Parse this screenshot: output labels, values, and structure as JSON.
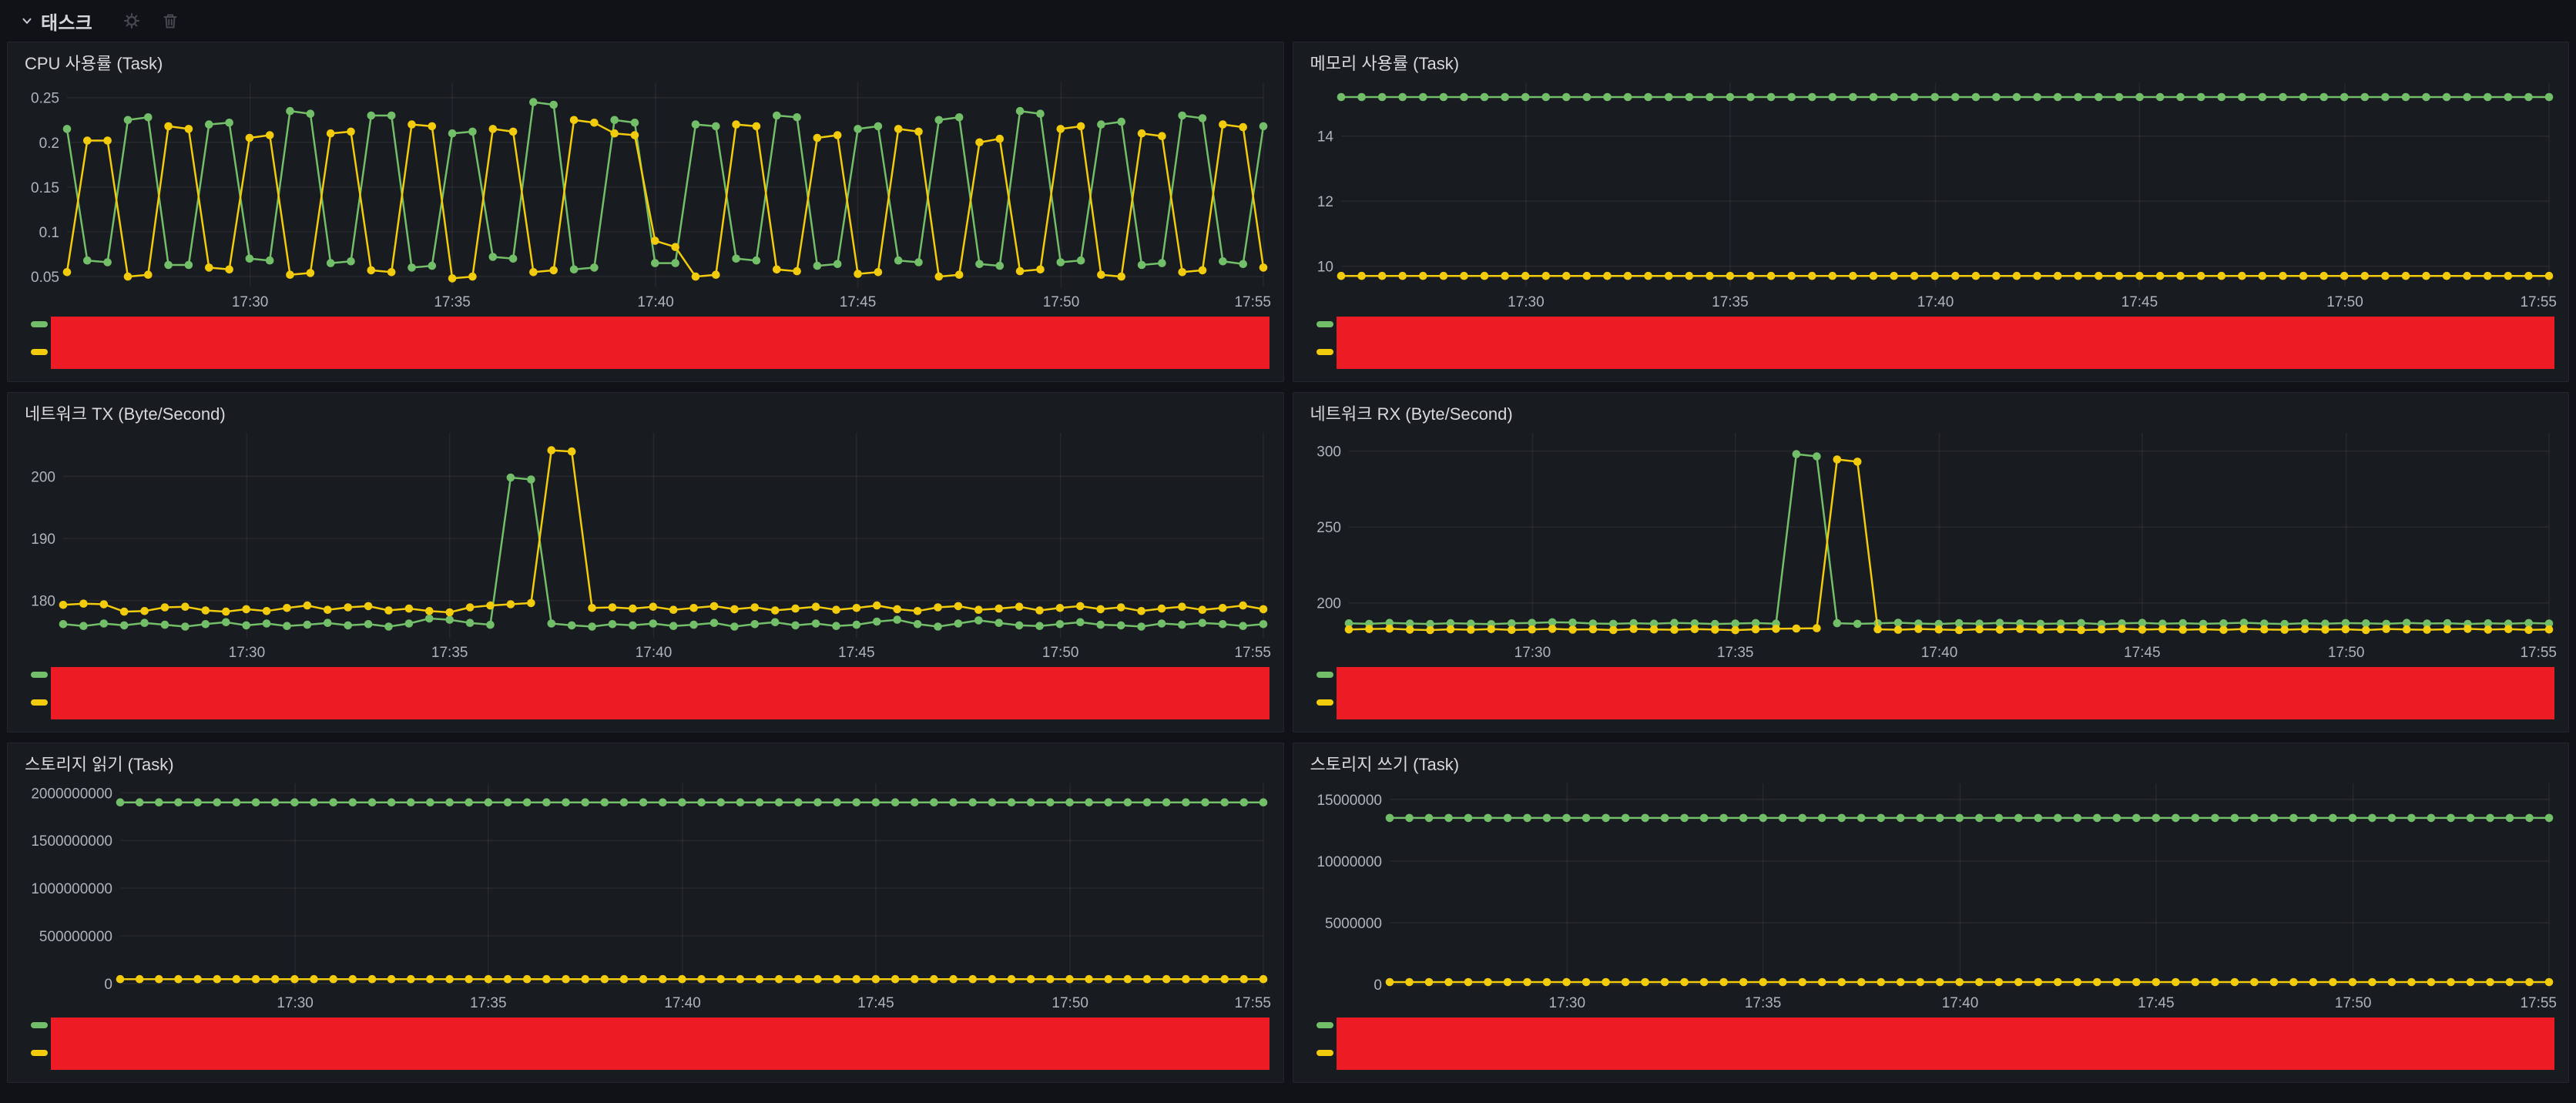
{
  "header": {
    "title": "태스크",
    "collapse_icon": "chevron-down",
    "actions": [
      {
        "name": "row-settings",
        "icon": "gear"
      },
      {
        "name": "row-delete",
        "icon": "trash"
      }
    ]
  },
  "colors": {
    "green": "#73bf69",
    "yellow": "#f2cc0c",
    "redacted": "#ed1c24",
    "page_bg": "#111217",
    "panel_bg": "#181b20",
    "panel_border": "#24262d",
    "title_text": "#d8d9da",
    "tick_text": "#b0b2bc",
    "grid": "rgba(204,204,220,0.08)"
  },
  "time_axis": {
    "labels": [
      "17:30",
      "17:35",
      "17:40",
      "17:45",
      "17:50",
      "17:55"
    ],
    "fractions": [
      0.153,
      0.322,
      0.492,
      0.661,
      0.831,
      1.0
    ]
  },
  "legend": {
    "labels_hidden_by_red_overlay": true,
    "series_colors": [
      "green",
      "yellow"
    ]
  },
  "chart_data": [
    {
      "id": "cpu-usage",
      "type": "line",
      "title": "CPU 사용률 (Task)",
      "points": 60,
      "yticks": [
        0.05,
        0.1,
        0.15,
        0.2,
        0.25
      ],
      "ytick_labels": [
        "0.05",
        "0.1",
        "0.15",
        "0.2",
        "0.25"
      ],
      "ylim": [
        0.038,
        0.267
      ],
      "series": [
        {
          "name": "series-green",
          "color": "green",
          "values": [
            0.215,
            0.068,
            0.066,
            0.225,
            0.228,
            0.063,
            0.063,
            0.22,
            0.222,
            0.07,
            0.068,
            0.235,
            0.232,
            0.065,
            0.067,
            0.23,
            0.23,
            0.06,
            0.062,
            0.21,
            0.212,
            0.072,
            0.07,
            0.245,
            0.242,
            0.058,
            0.06,
            0.225,
            0.222,
            0.065,
            0.065,
            0.22,
            0.218,
            0.07,
            0.068,
            0.23,
            0.228,
            0.062,
            0.064,
            0.215,
            0.218,
            0.068,
            0.066,
            0.225,
            0.228,
            0.064,
            0.062,
            0.235,
            0.232,
            0.066,
            0.068,
            0.22,
            0.223,
            0.063,
            0.065,
            0.23,
            0.227,
            0.067,
            0.064,
            0.218
          ]
        },
        {
          "name": "series-yellow",
          "color": "yellow",
          "values": [
            0.055,
            0.202,
            0.202,
            0.05,
            0.052,
            0.218,
            0.215,
            0.06,
            0.058,
            0.205,
            0.208,
            0.052,
            0.054,
            0.21,
            0.212,
            0.057,
            0.055,
            0.22,
            0.218,
            0.048,
            0.05,
            0.215,
            0.212,
            0.055,
            0.057,
            0.225,
            0.222,
            0.21,
            0.208,
            0.09,
            0.083,
            0.05,
            0.052,
            0.22,
            0.218,
            0.058,
            0.056,
            0.205,
            0.208,
            0.053,
            0.055,
            0.215,
            0.212,
            0.05,
            0.052,
            0.2,
            0.204,
            0.056,
            0.058,
            0.215,
            0.218,
            0.052,
            0.05,
            0.21,
            0.207,
            0.055,
            0.057,
            0.22,
            0.217,
            0.06
          ]
        }
      ]
    },
    {
      "id": "memory-usage",
      "type": "line",
      "title": "메모리 사용률 (Task)",
      "points": 60,
      "yticks": [
        10,
        12,
        14
      ],
      "ytick_labels": [
        "10",
        "12",
        "14"
      ],
      "ylim": [
        9.35,
        15.65
      ],
      "series": [
        {
          "name": "series-green",
          "color": "green",
          "const": 15.2
        },
        {
          "name": "series-yellow",
          "color": "yellow",
          "const": 9.7
        }
      ]
    },
    {
      "id": "network-tx",
      "type": "line",
      "title": "네트워크 TX (Byte/Second)",
      "points": 60,
      "yticks": [
        180,
        190,
        200
      ],
      "ytick_labels": [
        "180",
        "190",
        "200"
      ],
      "ylim": [
        174,
        207
      ],
      "series": [
        {
          "name": "series-green",
          "color": "green",
          "values": [
            176.2,
            175.9,
            176.3,
            176.0,
            176.4,
            176.1,
            175.8,
            176.2,
            176.5,
            176.0,
            176.3,
            175.9,
            176.1,
            176.4,
            176.0,
            176.2,
            175.8,
            176.3,
            177.1,
            176.9,
            176.4,
            176.1,
            199.8,
            199.5,
            176.3,
            176.0,
            175.8,
            176.2,
            176.0,
            176.3,
            175.9,
            176.1,
            176.4,
            175.8,
            176.2,
            176.5,
            176.0,
            176.3,
            175.9,
            176.1,
            176.6,
            176.9,
            176.2,
            175.8,
            176.3,
            176.8,
            176.4,
            176.0,
            175.9,
            176.2,
            176.5,
            176.1,
            176.0,
            175.8,
            176.3,
            176.1,
            176.4,
            176.2,
            175.9,
            176.2
          ]
        },
        {
          "name": "series-yellow",
          "color": "yellow",
          "values": [
            179.3,
            179.5,
            179.4,
            178.2,
            178.3,
            178.9,
            179.0,
            178.4,
            178.2,
            178.6,
            178.3,
            178.8,
            179.2,
            178.5,
            178.9,
            179.1,
            178.4,
            178.7,
            178.3,
            178.1,
            178.9,
            179.2,
            179.4,
            179.6,
            204.2,
            204.0,
            178.8,
            178.9,
            178.7,
            179.0,
            178.5,
            178.8,
            179.1,
            178.6,
            178.9,
            178.4,
            178.7,
            179.0,
            178.5,
            178.8,
            179.2,
            178.6,
            178.3,
            178.9,
            179.1,
            178.5,
            178.7,
            179.0,
            178.4,
            178.8,
            179.1,
            178.6,
            178.9,
            178.3,
            178.7,
            179.0,
            178.5,
            178.8,
            179.2,
            178.6
          ]
        }
      ]
    },
    {
      "id": "network-rx",
      "type": "line",
      "title": "네트워크 RX (Byte/Second)",
      "points": 60,
      "yticks": [
        200,
        250,
        300
      ],
      "ytick_labels": [
        "200",
        "250",
        "300"
      ],
      "ylim": [
        177,
        312
      ],
      "series": [
        {
          "name": "series-green",
          "color": "green",
          "values": [
            186.5,
            186.2,
            186.8,
            186.4,
            186.1,
            186.6,
            186.3,
            186.0,
            186.5,
            186.8,
            187.2,
            187.0,
            186.4,
            186.2,
            186.6,
            186.3,
            186.8,
            186.5,
            186.1,
            186.4,
            186.7,
            186.3,
            298.0,
            296.5,
            186.6,
            186.2,
            186.5,
            186.9,
            186.4,
            186.1,
            186.6,
            186.3,
            186.8,
            186.5,
            186.2,
            186.4,
            186.7,
            186.0,
            186.5,
            186.8,
            186.3,
            186.6,
            186.2,
            186.5,
            186.9,
            186.4,
            186.1,
            186.6,
            186.3,
            186.7,
            186.5,
            186.2,
            186.8,
            186.4,
            186.6,
            186.1,
            186.5,
            186.3,
            186.7,
            186.4
          ]
        },
        {
          "name": "series-yellow",
          "color": "yellow",
          "values": [
            182.5,
            182.8,
            183.0,
            182.4,
            182.1,
            182.6,
            182.3,
            182.7,
            182.2,
            182.5,
            182.9,
            182.4,
            182.6,
            182.1,
            182.8,
            182.5,
            182.3,
            182.7,
            182.4,
            182.0,
            182.6,
            182.9,
            183.1,
            183.3,
            294.5,
            293.0,
            182.6,
            182.3,
            182.8,
            182.5,
            182.1,
            182.6,
            182.4,
            182.8,
            182.3,
            182.6,
            182.1,
            182.5,
            182.9,
            182.4,
            182.7,
            182.3,
            182.6,
            182.2,
            182.8,
            182.5,
            182.3,
            182.7,
            182.4,
            182.6,
            182.1,
            182.8,
            182.5,
            182.3,
            182.6,
            182.9,
            182.4,
            182.7,
            182.2,
            182.5
          ]
        }
      ]
    },
    {
      "id": "storage-read",
      "type": "line",
      "title": "스토리지 읽기 (Task)",
      "points": 60,
      "yticks": [
        0,
        500000000,
        1000000000,
        1500000000,
        2000000000
      ],
      "ytick_labels": [
        "0",
        "500000000",
        "1000000000",
        "1500000000",
        "2000000000"
      ],
      "ylim": [
        -50000000,
        2100000000
      ],
      "series": [
        {
          "name": "series-green",
          "color": "green",
          "const": 1900000000
        },
        {
          "name": "series-yellow",
          "color": "yellow",
          "const": 45000000
        }
      ]
    },
    {
      "id": "storage-write",
      "type": "line",
      "title": "스토리지 쓰기 (Task)",
      "points": 60,
      "yticks": [
        0,
        5000000,
        10000000,
        15000000
      ],
      "ytick_labels": [
        "0",
        "5000000",
        "10000000",
        "15000000"
      ],
      "ylim": [
        -300000,
        16300000
      ],
      "series": [
        {
          "name": "series-green",
          "color": "green",
          "const": 13500000
        },
        {
          "name": "series-yellow",
          "color": "yellow",
          "const": 200000
        }
      ]
    }
  ]
}
